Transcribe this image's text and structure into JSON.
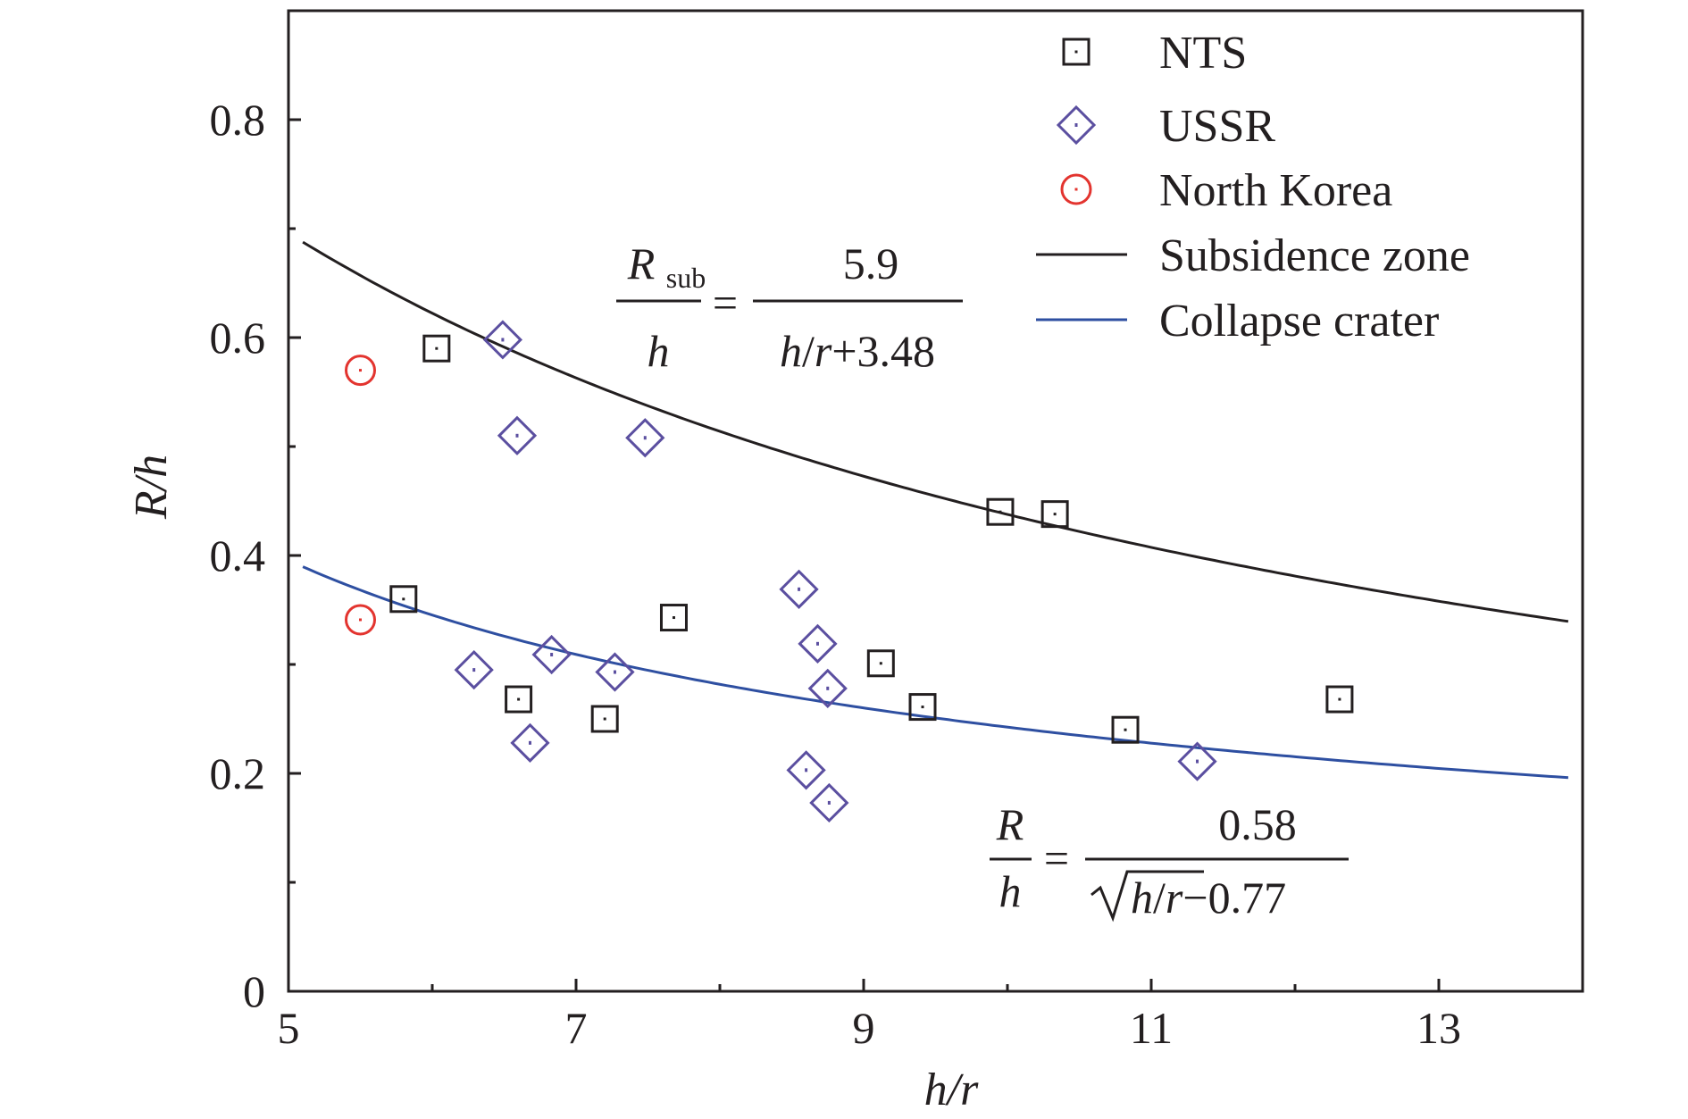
{
  "chart_data": {
    "type": "scatter",
    "xlabel": "h/r",
    "ylabel": "R/h",
    "xlim": [
      5,
      14
    ],
    "ylim": [
      0,
      0.9
    ],
    "x_ticks": [
      "5",
      "7",
      "9",
      "11",
      "13"
    ],
    "y_ticks": [
      "0",
      "0.2",
      "0.4",
      "0.6",
      "0.8"
    ],
    "grid": false,
    "legend_position": "top-right",
    "series": [
      {
        "name": "NTS",
        "marker": "square",
        "color": "#231f20",
        "points": [
          {
            "x": 5.8,
            "y": 0.36
          },
          {
            "x": 6.03,
            "y": 0.59
          },
          {
            "x": 6.6,
            "y": 0.268
          },
          {
            "x": 7.2,
            "y": 0.25
          },
          {
            "x": 7.68,
            "y": 0.343
          },
          {
            "x": 9.12,
            "y": 0.301
          },
          {
            "x": 9.41,
            "y": 0.261
          },
          {
            "x": 9.95,
            "y": 0.44
          },
          {
            "x": 10.33,
            "y": 0.438
          },
          {
            "x": 10.82,
            "y": 0.24
          },
          {
            "x": 12.31,
            "y": 0.268
          }
        ]
      },
      {
        "name": "USSR",
        "marker": "diamond",
        "color": "#5b4fa0",
        "points": [
          {
            "x": 6.29,
            "y": 0.295
          },
          {
            "x": 6.49,
            "y": 0.598
          },
          {
            "x": 6.59,
            "y": 0.51
          },
          {
            "x": 6.68,
            "y": 0.228
          },
          {
            "x": 6.83,
            "y": 0.309
          },
          {
            "x": 7.27,
            "y": 0.293
          },
          {
            "x": 7.48,
            "y": 0.508
          },
          {
            "x": 8.55,
            "y": 0.369
          },
          {
            "x": 8.6,
            "y": 0.203
          },
          {
            "x": 8.68,
            "y": 0.319
          },
          {
            "x": 8.75,
            "y": 0.278
          },
          {
            "x": 8.76,
            "y": 0.173
          },
          {
            "x": 11.32,
            "y": 0.211
          }
        ]
      },
      {
        "name": "North Korea",
        "marker": "circle",
        "color": "#e3342f",
        "points": [
          {
            "x": 5.5,
            "y": 0.57
          },
          {
            "x": 5.5,
            "y": 0.341
          }
        ]
      }
    ],
    "curves": [
      {
        "name": "Subsidence zone",
        "color": "#231f20",
        "equation": "Rsub/h = 5.9/(h/r+3.48)"
      },
      {
        "name": "Collapse crater",
        "color": "#2e4fa1",
        "equation": "R/h = 0.58/(sqrt(h/r)-0.77)"
      }
    ],
    "annotations": {
      "sub_eq": {
        "R": "R",
        "sub": "sub",
        "h": "h",
        "equals": "=",
        "num": "5.9",
        "den_h": "h",
        "den_slash": "/",
        "den_r": "r",
        "den_tail": "+3.48"
      },
      "col_eq": {
        "R": "R",
        "h": "h",
        "equals": "=",
        "num": "0.58",
        "den_h": "h",
        "den_slash": "/",
        "den_r": "r",
        "den_tail": "−0.77"
      }
    }
  }
}
